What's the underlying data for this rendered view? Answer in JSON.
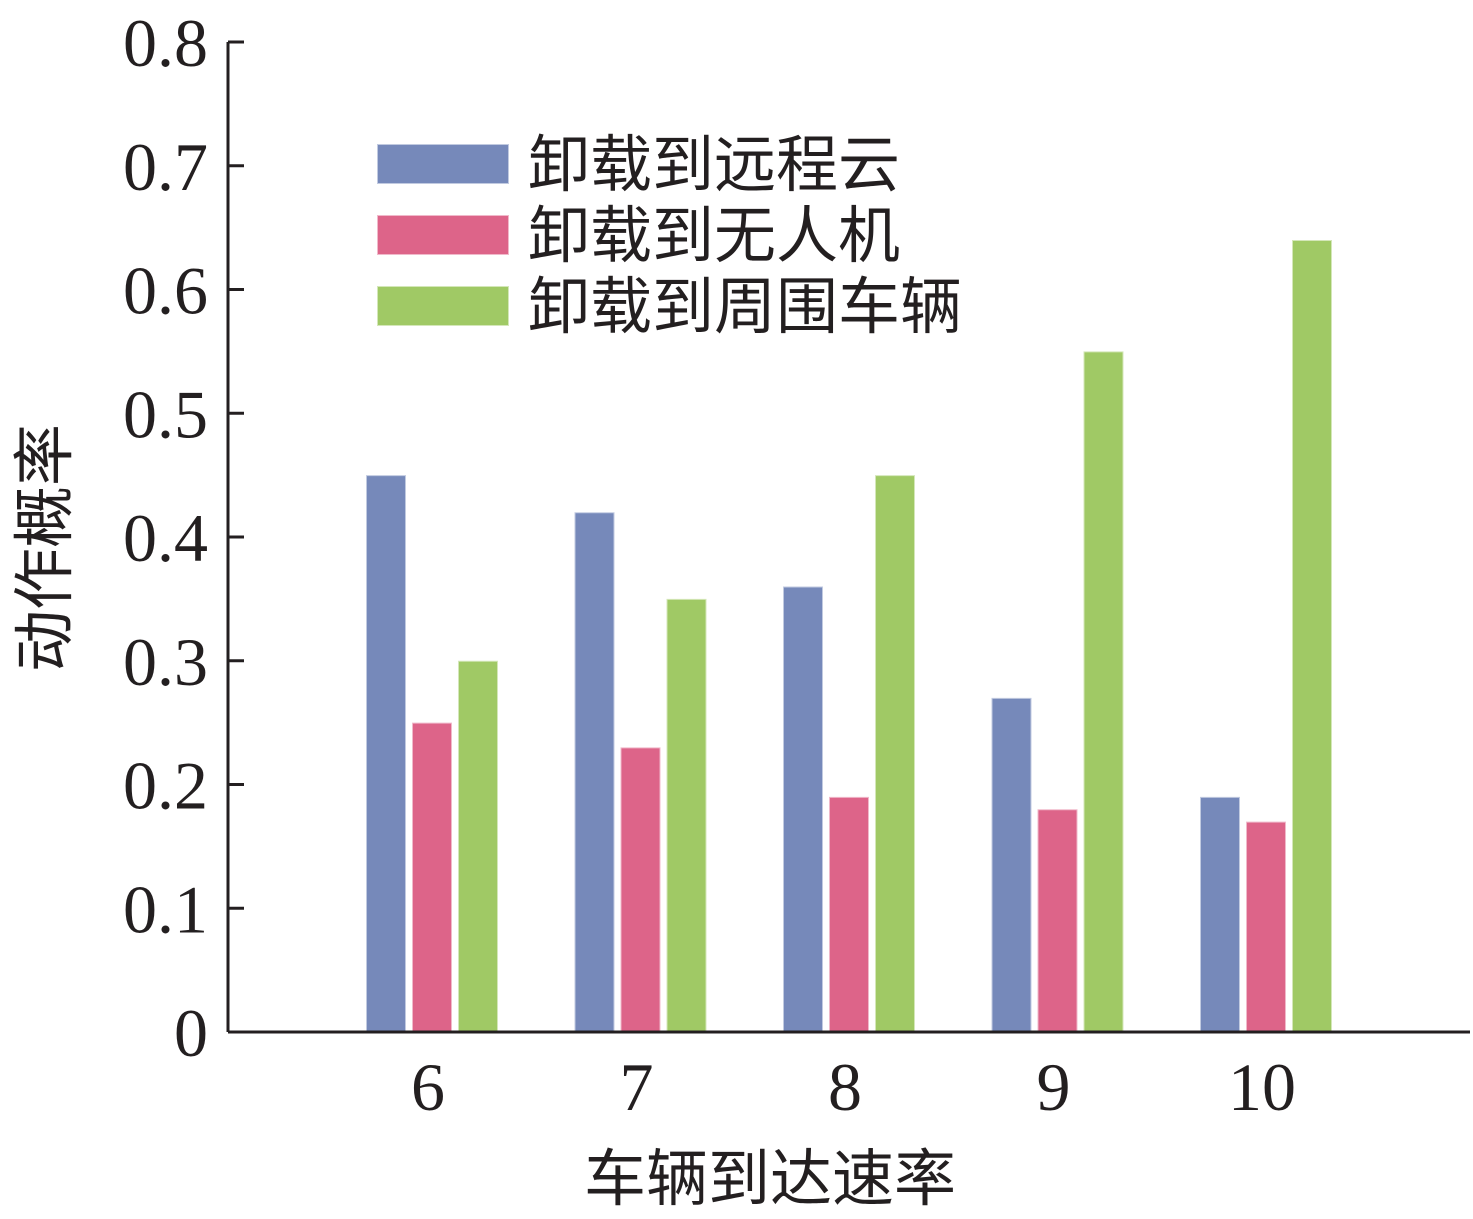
{
  "chart_data": {
    "type": "bar",
    "categories": [
      "6",
      "7",
      "8",
      "9",
      "10"
    ],
    "series": [
      {
        "name": "卸载到远程云",
        "values": [
          0.45,
          0.42,
          0.36,
          0.27,
          0.19
        ],
        "color": "#7689ba"
      },
      {
        "name": "卸载到无人机",
        "values": [
          0.25,
          0.23,
          0.19,
          0.18,
          0.17
        ],
        "color": "#dd6489"
      },
      {
        "name": "卸载到周围车辆",
        "values": [
          0.3,
          0.35,
          0.45,
          0.55,
          0.64
        ],
        "color": "#a0c965"
      }
    ],
    "xlabel": "车辆到达速率",
    "ylabel": "动作概率",
    "ylim": [
      0,
      0.8
    ],
    "yticks": [
      "0",
      "0.1",
      "0.2",
      "0.3",
      "0.4",
      "0.5",
      "0.6",
      "0.7",
      "0.8"
    ],
    "grid": false,
    "legend_position": "top-left"
  }
}
